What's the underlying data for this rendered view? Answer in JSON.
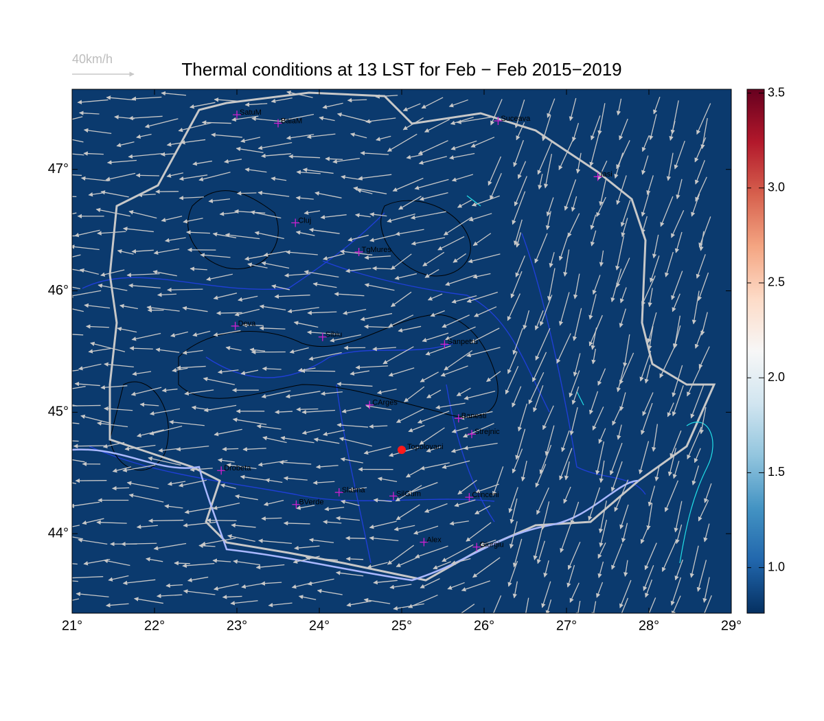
{
  "title": "Thermal conditions at 13 LST for Feb − Feb  2015−2019",
  "legend_arrow": "40km/h",
  "map": {
    "background": "#0b3a6e",
    "xlim": [
      21,
      29
    ],
    "ylim": [
      43.345,
      47.66
    ],
    "xticks": [
      {
        "value": 21,
        "label": "21°"
      },
      {
        "value": 22,
        "label": "22°"
      },
      {
        "value": 23,
        "label": "23°"
      },
      {
        "value": 24,
        "label": "24°"
      },
      {
        "value": 25,
        "label": "25°"
      },
      {
        "value": 26,
        "label": "26°"
      },
      {
        "value": 27,
        "label": "27°"
      },
      {
        "value": 28,
        "label": "28°"
      },
      {
        "value": 29,
        "label": "29°"
      }
    ],
    "yticks": [
      {
        "value": 44,
        "label": "44°"
      },
      {
        "value": 45,
        "label": "45°"
      },
      {
        "value": 46,
        "label": "46°"
      },
      {
        "value": 47,
        "label": "47°"
      }
    ],
    "cities": [
      {
        "name": "SatuM",
        "lon": 23.0,
        "lat": 47.45
      },
      {
        "name": "BaiaM",
        "lon": 23.5,
        "lat": 47.38
      },
      {
        "name": "Suceava",
        "lon": 26.17,
        "lat": 47.4
      },
      {
        "name": "Iasi",
        "lon": 27.38,
        "lat": 46.94
      },
      {
        "name": "Cluj",
        "lon": 23.71,
        "lat": 46.56
      },
      {
        "name": "TgMures",
        "lon": 24.48,
        "lat": 46.32
      },
      {
        "name": "Deva",
        "lon": 22.98,
        "lat": 45.71
      },
      {
        "name": "Sibiu",
        "lon": 24.04,
        "lat": 45.62
      },
      {
        "name": "Sanpetru",
        "lon": 25.52,
        "lat": 45.56
      },
      {
        "name": "CArges",
        "lon": 24.61,
        "lat": 45.06
      },
      {
        "name": "Banesti",
        "lon": 25.69,
        "lat": 44.95
      },
      {
        "name": "Strejnic",
        "lon": 25.85,
        "lat": 44.82
      },
      {
        "name": "Drobeta",
        "lon": 22.81,
        "lat": 44.52
      },
      {
        "name": "Slatina",
        "lon": 24.24,
        "lat": 44.34
      },
      {
        "name": "SilGum",
        "lon": 24.9,
        "lat": 44.31
      },
      {
        "name": "Clinceni",
        "lon": 25.82,
        "lat": 44.3
      },
      {
        "name": "BVerde",
        "lon": 23.72,
        "lat": 44.24
      },
      {
        "name": "Alex",
        "lon": 25.27,
        "lat": 43.93
      },
      {
        "name": "Giurgiu",
        "lon": 25.91,
        "lat": 43.89
      }
    ],
    "station": {
      "name": "Topolovani",
      "lon": 25.0,
      "lat": 44.69,
      "color": "#ff1a1a"
    }
  },
  "colorbar": {
    "lim": [
      0.76,
      3.52
    ],
    "colormap": [
      "#053061",
      "#2166ac",
      "#4393c3",
      "#92c5de",
      "#d1e5f0",
      "#f7f7f7",
      "#fddbc7",
      "#f4a582",
      "#d6604d",
      "#b2182b",
      "#67001f"
    ],
    "ticks": [
      {
        "value": 1.0,
        "label": "1.0"
      },
      {
        "value": 1.5,
        "label": "1.5"
      },
      {
        "value": 2.0,
        "label": "2.0"
      },
      {
        "value": 2.5,
        "label": "2.5"
      },
      {
        "value": 3.0,
        "label": "3.0"
      },
      {
        "value": 3.5,
        "label": "3.5"
      }
    ]
  }
}
